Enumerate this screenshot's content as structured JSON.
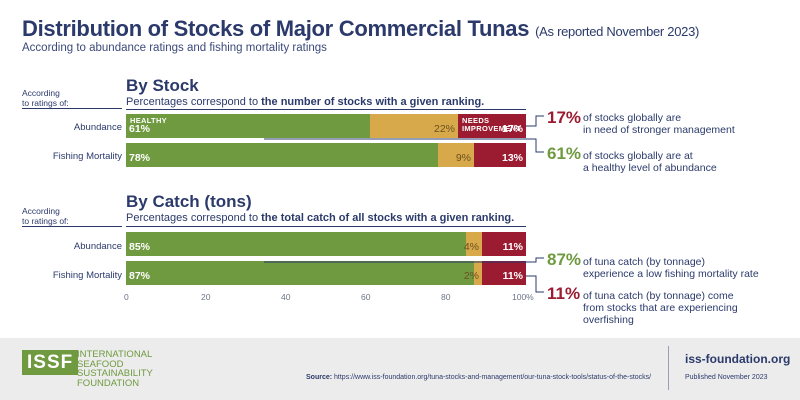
{
  "title": "Distribution of Stocks of Major Commercial Tunas",
  "title_note": "(As reported November 2023)",
  "subtitle": "According to abundance ratings and fishing mortality ratings",
  "chart_data": [
    {
      "type": "bar",
      "orientation": "horizontal",
      "stacked": true,
      "title": "By Stock",
      "description_prefix": "Percentages correspond to ",
      "description_bold": "the number of stocks with a given ranking.",
      "row_header": "According to ratings of:",
      "categories": [
        "Abundance",
        "Fishing Mortality"
      ],
      "series": [
        {
          "name": "HEALTHY",
          "values": [
            61,
            78
          ],
          "labels": [
            "61%",
            "78%"
          ],
          "color": "#6f9a3f"
        },
        {
          "name": "",
          "values": [
            22,
            9
          ],
          "labels": [
            "22%",
            "9%"
          ],
          "color": "#d7a94a"
        },
        {
          "name": "NEEDS IMPROVEMENT",
          "values": [
            17,
            13
          ],
          "labels": [
            "17%",
            "13%"
          ],
          "color": "#9b1c31"
        }
      ],
      "xlim": [
        0,
        100
      ]
    },
    {
      "type": "bar",
      "orientation": "horizontal",
      "stacked": true,
      "title": "By Catch (tons)",
      "description_prefix": "Percentages correspond to ",
      "description_bold": "the total catch of all stocks with a given ranking.",
      "row_header": "According to ratings of:",
      "categories": [
        "Abundance",
        "Fishing Mortality"
      ],
      "series": [
        {
          "name": "",
          "values": [
            85,
            87
          ],
          "labels": [
            "85%",
            "87%"
          ],
          "color": "#6f9a3f"
        },
        {
          "name": "",
          "values": [
            4,
            2
          ],
          "labels": [
            "4%",
            "2%"
          ],
          "color": "#d7a94a"
        },
        {
          "name": "",
          "values": [
            11,
            11
          ],
          "labels": [
            "11%",
            "11%"
          ],
          "color": "#9b1c31"
        }
      ],
      "xlim": [
        0,
        100
      ],
      "xticks": [
        "0",
        "20",
        "40",
        "60",
        "80",
        "100%"
      ]
    }
  ],
  "callouts": [
    {
      "value": "17%",
      "line1": "of stocks globally are",
      "line2": "in need of stronger management",
      "color": "#9b1c31"
    },
    {
      "value": "61%",
      "line1": "of stocks globally are at",
      "line2": "a healthy level of abundance",
      "color": "#6f9a3f"
    },
    {
      "value": "87%",
      "line1": "of tuna catch (by tonnage)",
      "line2": "experience a low fishing mortality rate",
      "color": "#6f9a3f"
    },
    {
      "value": "11%",
      "line1": "of tuna catch (by tonnage) come",
      "line2": "from stocks that are experiencing",
      "line3": "overfishing",
      "color": "#9b1c31"
    }
  ],
  "footer": {
    "logo": "ISSF",
    "org_lines": [
      "INTERNATIONAL",
      "SEAFOOD",
      "SUSTAINABILITY",
      "FOUNDATION"
    ],
    "source_label": "Source:",
    "source_url": "https://www.iss-foundation.org/tuna-stocks-and-management/our-tuna-stock-tools/status-of-the-stocks/",
    "website": "iss-foundation.org",
    "published": "Published November 2023"
  }
}
